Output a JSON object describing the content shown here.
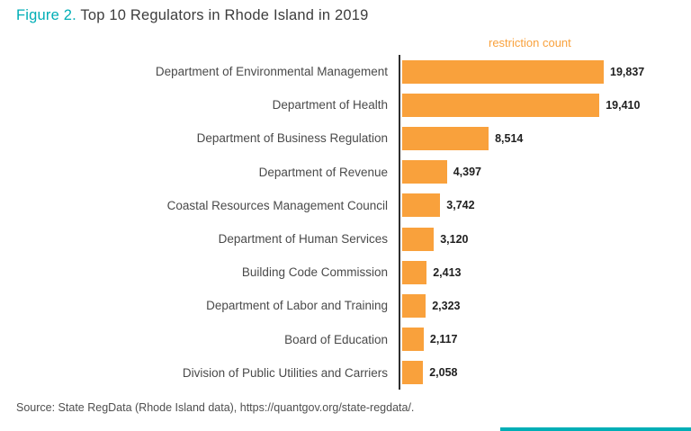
{
  "title": {
    "prefix": "Figure 2.",
    "rest": " Top 10 Regulators in Rhode Island in 2019"
  },
  "axis_label": "restriction count",
  "source": "Source: State RegData (Rhode Island data), https://quantgov.org/state-regdata/.",
  "colors": {
    "accent_teal": "#00AEB6",
    "bar_orange": "#F9A13C"
  },
  "chart_data": {
    "type": "bar",
    "orientation": "horizontal",
    "title": "Top 10 Regulators in Rhode Island in 2019",
    "xlabel": "restriction count",
    "ylabel": "",
    "xlim": [
      0,
      20000
    ],
    "grid": false,
    "legend": false,
    "categories": [
      "Department of Environmental Management",
      "Department of Health",
      "Department of Business Regulation",
      "Department of Revenue",
      "Coastal Resources Management Council",
      "Department of Human Services",
      "Building Code Commission",
      "Department of Labor and Training",
      "Board of Education",
      "Division of Public Utilities and Carriers"
    ],
    "values": [
      19837,
      19410,
      8514,
      4397,
      3742,
      3120,
      2413,
      2323,
      2117,
      2058
    ],
    "value_labels": [
      "19,837",
      "19,410",
      "8,514",
      "4,397",
      "3,742",
      "3,120",
      "2,413",
      "2,323",
      "2,117",
      "2,058"
    ]
  }
}
